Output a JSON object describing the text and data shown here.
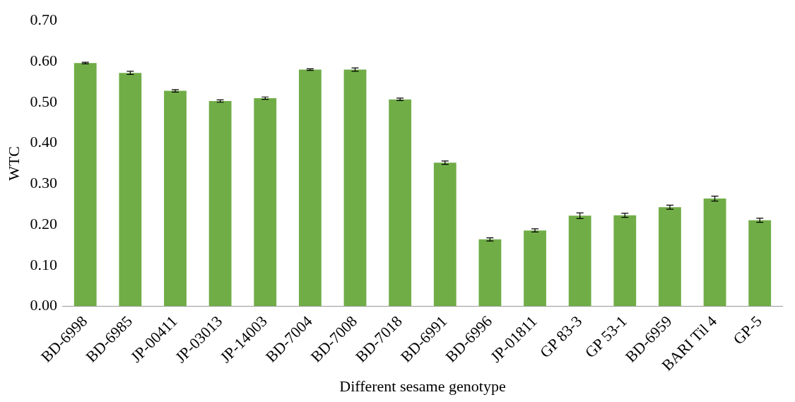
{
  "chart_data": {
    "type": "bar",
    "xlabel": "Different sesame genotype",
    "ylabel": "WTC",
    "categories": [
      "BD-6998",
      "BD-6985",
      "JP-00411",
      "JP-03013",
      "JP-14003",
      "BD-7004",
      "BD-7008",
      "BD-7018",
      "BD-6991",
      "BD-6996",
      "JP-01811",
      "GP 83-3",
      "GP 53-1",
      "BD-6959",
      "BARI Til 4",
      "GP-5"
    ],
    "values": [
      0.596,
      0.572,
      0.528,
      0.503,
      0.51,
      0.58,
      0.58,
      0.507,
      0.352,
      0.164,
      0.186,
      0.222,
      0.223,
      0.243,
      0.264,
      0.211
    ],
    "errors": [
      0.002,
      0.004,
      0.003,
      0.003,
      0.003,
      0.002,
      0.004,
      0.003,
      0.004,
      0.004,
      0.004,
      0.007,
      0.005,
      0.005,
      0.006,
      0.005
    ],
    "color": "#70ad47",
    "ylim": [
      0,
      0.7
    ],
    "yticks": [
      {
        "value": 0,
        "label": "0.00"
      },
      {
        "value": 0.1,
        "label": "0.10"
      },
      {
        "value": 0.2,
        "label": "0.20"
      },
      {
        "value": 0.3,
        "label": "0.30"
      },
      {
        "value": 0.4,
        "label": "0.40"
      },
      {
        "value": 0.5,
        "label": "0.50"
      },
      {
        "value": 0.6,
        "label": "0.60"
      },
      {
        "value": 0.7,
        "label": "0.70"
      }
    ],
    "grid": false,
    "legend": false
  }
}
